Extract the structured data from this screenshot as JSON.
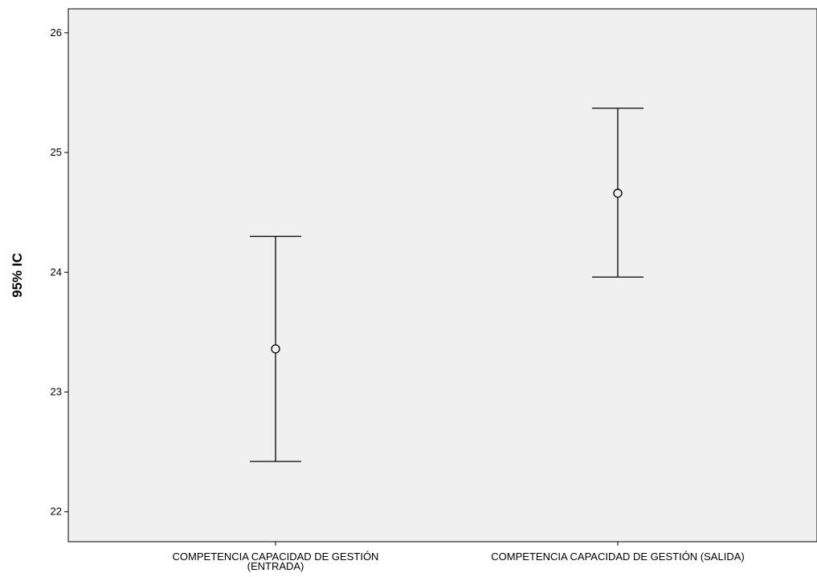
{
  "chart_data": {
    "type": "errorbar",
    "ylabel": "95% IC",
    "xlabel": "",
    "ylim": [
      21.75,
      26.2
    ],
    "yticks": [
      22,
      23,
      24,
      25,
      26
    ],
    "grid": false,
    "categories": [
      {
        "lines": [
          "COMPETENCIA CAPACIDAD DE GESTIÓN",
          "(ENTRADA)"
        ]
      },
      {
        "lines": [
          "COMPETENCIA CAPACIDAD DE GESTIÓN (SALIDA)"
        ]
      }
    ],
    "points": [
      {
        "mean": 23.36,
        "lower": 22.42,
        "upper": 24.3
      },
      {
        "mean": 24.66,
        "lower": 23.96,
        "upper": 25.37
      }
    ],
    "colors": {
      "plot_background": "#f0f0f0",
      "line": "#000000"
    }
  }
}
